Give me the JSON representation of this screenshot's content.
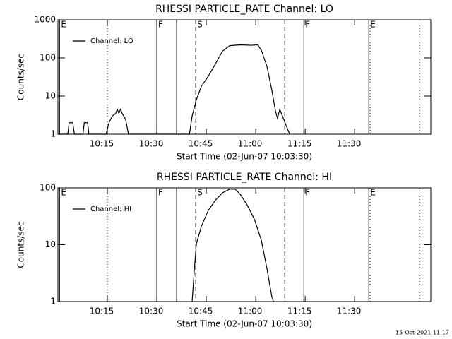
{
  "chart_data": [
    {
      "type": "line",
      "title": "RHESSI PARTICLE_RATE Channel: LO",
      "xlabel": "Start Time (02-Jun-07 10:03:30)",
      "ylabel": "Counts/sec",
      "log_y": true,
      "legend": "upper left",
      "xlim": [
        600,
        713.1
      ],
      "xticks": [
        {
          "value": 615,
          "label": "10:15"
        },
        {
          "value": 630,
          "label": "10:30"
        },
        {
          "value": 645,
          "label": "10:45"
        },
        {
          "value": 660,
          "label": "11:00"
        },
        {
          "value": 675,
          "label": "11:15"
        },
        {
          "value": 690,
          "label": "11:30"
        }
      ],
      "ylim": [
        1,
        1000
      ],
      "yticks": [
        1,
        10,
        100,
        1000
      ],
      "markers": [
        {
          "x": 600.5,
          "style": "solid",
          "label": "E"
        },
        {
          "x": 615,
          "style": "dotted"
        },
        {
          "x": 630,
          "style": "solid",
          "label": "F"
        },
        {
          "x": 636,
          "style": "solid"
        },
        {
          "x": 641.8,
          "style": "dashed",
          "label": "S"
        },
        {
          "x": 668.8,
          "style": "dashed"
        },
        {
          "x": 674.6,
          "style": "solid",
          "label": "F"
        },
        {
          "x": 694.3,
          "style": "solid",
          "label": "E"
        },
        {
          "x": 694.7,
          "style": "dotted"
        },
        {
          "x": 709.7,
          "style": "dotted"
        }
      ],
      "series": [
        {
          "name": "Channel: LO",
          "color": "#000000",
          "x": [
            600,
            603.0,
            603.4,
            604.5,
            605.0,
            607.6,
            608.0,
            609.0,
            609.4,
            614.6,
            615.5,
            616.5,
            617.5,
            618.0,
            618.5,
            619.0,
            619.5,
            620.5,
            621.4,
            639.9,
            640.7,
            642.0,
            643.5,
            645.6,
            647.8,
            649.9,
            652.1,
            655.3,
            658.6,
            660.6,
            661.7,
            663.4,
            664.9,
            666.0,
            666.6,
            667.3,
            668.1,
            669.2,
            670.3
          ],
          "values": [
            1,
            1,
            2,
            2,
            1,
            1,
            2,
            2,
            1,
            1,
            2,
            3,
            3.5,
            4.5,
            3.5,
            4.5,
            3.5,
            2.5,
            1,
            1,
            3,
            8,
            18,
            33,
            70,
            150,
            210,
            220,
            215,
            220,
            160,
            60,
            14,
            4,
            2.6,
            4.5,
            3,
            1.7,
            1
          ]
        }
      ]
    },
    {
      "type": "line",
      "title": "RHESSI PARTICLE_RATE Channel: HI",
      "xlabel": "Start Time (02-Jun-07 10:03:30)",
      "ylabel": "Counts/sec",
      "log_y": true,
      "legend": "upper left",
      "xlim": [
        600,
        713.1
      ],
      "xticks": [
        {
          "value": 615,
          "label": "10:15"
        },
        {
          "value": 630,
          "label": "10:30"
        },
        {
          "value": 645,
          "label": "10:45"
        },
        {
          "value": 660,
          "label": "11:00"
        },
        {
          "value": 675,
          "label": "11:15"
        },
        {
          "value": 690,
          "label": "11:30"
        }
      ],
      "ylim": [
        1,
        100
      ],
      "yticks": [
        1,
        10,
        100
      ],
      "markers": [
        {
          "x": 600.5,
          "style": "solid",
          "label": "E"
        },
        {
          "x": 615,
          "style": "dotted"
        },
        {
          "x": 630,
          "style": "solid",
          "label": "F"
        },
        {
          "x": 636,
          "style": "solid"
        },
        {
          "x": 641.8,
          "style": "dashed",
          "label": "S"
        },
        {
          "x": 668.8,
          "style": "dashed"
        },
        {
          "x": 674.6,
          "style": "solid",
          "label": "F"
        },
        {
          "x": 694.3,
          "style": "solid",
          "label": "E"
        },
        {
          "x": 694.7,
          "style": "dotted"
        },
        {
          "x": 709.7,
          "style": "dotted"
        }
      ],
      "series": [
        {
          "name": "Channel: HI",
          "color": "#000000",
          "x": [
            640.7,
            641.4,
            642.0,
            643.5,
            645.6,
            647.8,
            649.9,
            652.1,
            653.8,
            655.3,
            657.4,
            659.6,
            661.7,
            663.4,
            664.9,
            665.4
          ],
          "values": [
            1,
            3.8,
            10.4,
            21,
            40,
            61,
            82,
            95,
            95,
            77,
            50,
            28,
            12,
            3.8,
            1.2,
            1
          ]
        }
      ]
    }
  ],
  "footer": "15-Oct-2021 11:17"
}
